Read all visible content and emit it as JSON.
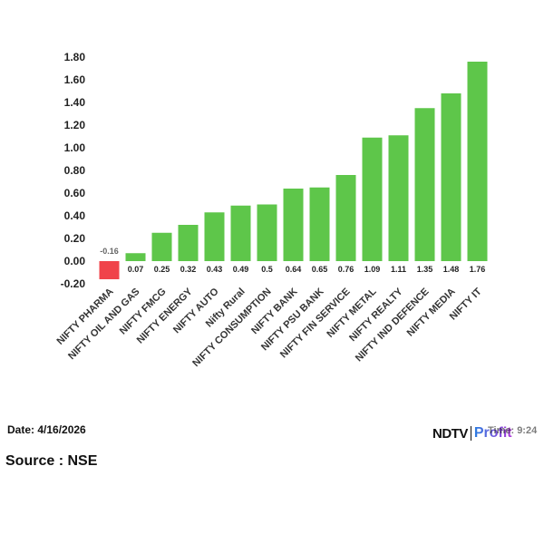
{
  "chart_data": {
    "type": "bar",
    "categories": [
      "NIFTY PHARMA",
      "NIFTY OIL AND GAS",
      "NIFTY FMCG",
      "NIFTY ENERGY",
      "NIFTY AUTO",
      "Nifty Rural",
      "NIFTY CONSUMPTION",
      "NIFTY BANK",
      "NIFTY PSU BANK",
      "NIFTY FIN SERVICE",
      "NIFTY METAL",
      "NIFTY REALTY",
      "NIFTY IND DEFENCE",
      "NIFTY MEDIA",
      "NIFTY IT"
    ],
    "values": [
      -0.16,
      0.07,
      0.25,
      0.32,
      0.43,
      0.49,
      0.5,
      0.64,
      0.65,
      0.76,
      1.09,
      1.11,
      1.35,
      1.48,
      1.76
    ],
    "value_labels": [
      "-0.16",
      "0.07",
      "0.25",
      "0.32",
      "0.43",
      "0.49",
      "0.5",
      "0.64",
      "0.65",
      "0.76",
      "1.09",
      "1.11",
      "1.35",
      "1.48",
      "1.76"
    ],
    "yticks": [
      "1.80",
      "1.60",
      "1.40",
      "1.20",
      "1.00",
      "0.80",
      "0.60",
      "0.40",
      "0.20",
      "0.00",
      "-0.20"
    ],
    "ytick_values": [
      1.8,
      1.6,
      1.4,
      1.2,
      1.0,
      0.8,
      0.6,
      0.4,
      0.2,
      0.0,
      -0.2
    ],
    "ylim": [
      -0.2,
      1.8
    ],
    "grid": false,
    "positive_color": "#5ec64a",
    "negative_color": "#f0434a",
    "title": "",
    "xlabel": "",
    "ylabel": ""
  },
  "footer": {
    "date": "Date: 4/16/2026",
    "source": "Source : NSE",
    "logo_main": "NDTV",
    "logo_sub": "Profit",
    "time_fragment": "Time: 9:24"
  }
}
